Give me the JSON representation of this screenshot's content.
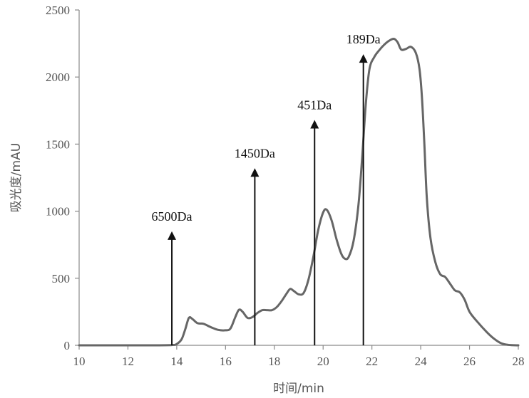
{
  "chart_data": {
    "type": "line",
    "title": "",
    "xlabel": "时间/min",
    "ylabel": "吸光度/mAU",
    "xlim": [
      10,
      28
    ],
    "ylim": [
      0,
      2500
    ],
    "x_ticks": [
      10,
      12,
      14,
      16,
      18,
      20,
      22,
      24,
      26,
      28
    ],
    "y_ticks": [
      0,
      500,
      1000,
      1500,
      2000,
      2500
    ],
    "grid": false,
    "legend": "none",
    "series": [
      {
        "color": "#666666",
        "points": [
          [
            10,
            0
          ],
          [
            12,
            0
          ],
          [
            13,
            0
          ],
          [
            13.8,
            2
          ],
          [
            14.0,
            10
          ],
          [
            14.2,
            45
          ],
          [
            14.35,
            120
          ],
          [
            14.5,
            205
          ],
          [
            14.65,
            195
          ],
          [
            14.85,
            165
          ],
          [
            15.1,
            160
          ],
          [
            15.4,
            135
          ],
          [
            15.7,
            115
          ],
          [
            16.0,
            112
          ],
          [
            16.2,
            125
          ],
          [
            16.4,
            210
          ],
          [
            16.55,
            265
          ],
          [
            16.7,
            250
          ],
          [
            16.9,
            205
          ],
          [
            17.1,
            210
          ],
          [
            17.3,
            240
          ],
          [
            17.5,
            262
          ],
          [
            17.7,
            262
          ],
          [
            17.9,
            262
          ],
          [
            18.1,
            285
          ],
          [
            18.3,
            330
          ],
          [
            18.5,
            385
          ],
          [
            18.65,
            420
          ],
          [
            18.8,
            405
          ],
          [
            19.0,
            380
          ],
          [
            19.2,
            390
          ],
          [
            19.4,
            490
          ],
          [
            19.6,
            660
          ],
          [
            19.8,
            860
          ],
          [
            20.0,
            990
          ],
          [
            20.15,
            1010
          ],
          [
            20.35,
            930
          ],
          [
            20.55,
            790
          ],
          [
            20.75,
            680
          ],
          [
            20.9,
            645
          ],
          [
            21.05,
            660
          ],
          [
            21.25,
            780
          ],
          [
            21.45,
            1050
          ],
          [
            21.6,
            1400
          ],
          [
            21.75,
            1800
          ],
          [
            21.9,
            2060
          ],
          [
            22.1,
            2150
          ],
          [
            22.3,
            2200
          ],
          [
            22.5,
            2240
          ],
          [
            22.7,
            2270
          ],
          [
            22.9,
            2285
          ],
          [
            23.05,
            2260
          ],
          [
            23.2,
            2205
          ],
          [
            23.4,
            2210
          ],
          [
            23.6,
            2225
          ],
          [
            23.8,
            2180
          ],
          [
            23.95,
            2060
          ],
          [
            24.05,
            1850
          ],
          [
            24.15,
            1500
          ],
          [
            24.25,
            1100
          ],
          [
            24.4,
            800
          ],
          [
            24.6,
            620
          ],
          [
            24.8,
            530
          ],
          [
            25.0,
            510
          ],
          [
            25.2,
            460
          ],
          [
            25.4,
            410
          ],
          [
            25.6,
            395
          ],
          [
            25.8,
            340
          ],
          [
            26.0,
            250
          ],
          [
            26.3,
            180
          ],
          [
            26.7,
            100
          ],
          [
            27.0,
            50
          ],
          [
            27.3,
            15
          ],
          [
            27.6,
            3
          ],
          [
            28.0,
            0
          ]
        ]
      }
    ],
    "markers": [
      {
        "label": "6500Da",
        "x": 13.8,
        "top": 850
      },
      {
        "label": "1450Da",
        "x": 17.2,
        "top": 1320
      },
      {
        "label": "451Da",
        "x": 19.65,
        "top": 1680
      },
      {
        "label": "189Da",
        "x": 21.65,
        "top": 2170
      }
    ]
  }
}
